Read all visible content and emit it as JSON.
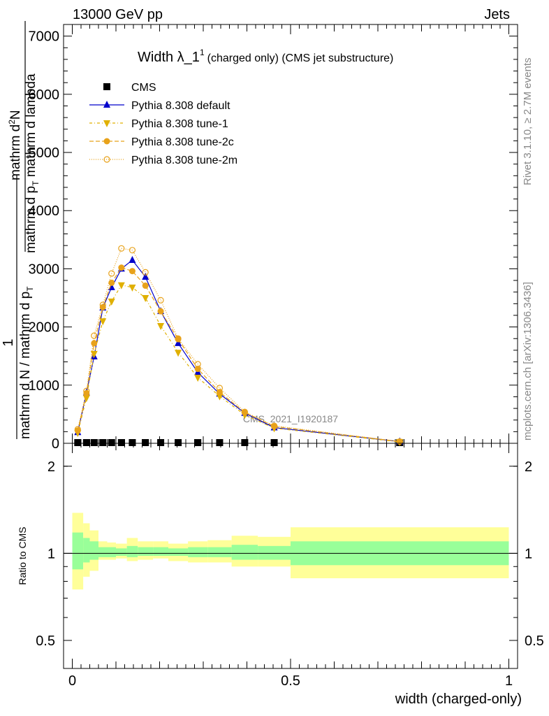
{
  "header": {
    "left": "13000 GeV pp",
    "right": "Jets"
  },
  "side_labels": {
    "rivet": "Rivet 3.1.10, ≥ 2.7M events",
    "mcplots": "mcplots.cern.ch [arXiv:1306.3436]"
  },
  "watermark": "CMS_2021_I1920187",
  "chart_data": {
    "type": "line",
    "title": "Width λ_1",
    "title_sup": "1",
    "subtitle": "(charged only) (CMS jet substructure)",
    "ylabel_upper": "1 / mathrm d N / mathrm d p_T mathrm d N / mathrm d lambda",
    "ylabel_parts": {
      "frac_num": "1",
      "frac_den": "mathrm d N / mathrm d p",
      "frac_den_sub": "T",
      "right_num": "mathrm d",
      "right_num_sup": "2",
      "right_num_tail": "N",
      "right_den": "mathrm d p",
      "right_den_sub": "T",
      "right_den_tail": " mathrm d lambda"
    },
    "xlabel": "width (charged-only)",
    "xlim": [
      -0.02,
      1.02
    ],
    "ylim": [
      0,
      7200
    ],
    "ytick_labels": [
      "0",
      "1000",
      "2000",
      "3000",
      "4000",
      "5000",
      "6000",
      "7000"
    ],
    "ratio_ylabel": "Ratio to CMS",
    "ratio_ytick_labels": [
      "0.5",
      "1",
      "2"
    ],
    "xtick_labels": [
      "0",
      "0.5",
      "1"
    ],
    "ratio_ylim": [
      0.4,
      2.4
    ],
    "x": [
      0.0125,
      0.0325,
      0.05,
      0.07,
      0.09,
      0.1125,
      0.1375,
      0.1675,
      0.2025,
      0.2425,
      0.2875,
      0.3375,
      0.395,
      0.4625,
      0.75
    ],
    "series": [
      {
        "name": "CMS",
        "marker": "square",
        "color": "#000000",
        "values": [
          0,
          0,
          0,
          0,
          0,
          0,
          0,
          0,
          0,
          0,
          0,
          0,
          0,
          0,
          0
        ]
      },
      {
        "name": "Pythia 8.308 default",
        "marker": "triangle-up",
        "color": "#0000cc",
        "dash": "",
        "values": [
          190,
          870,
          1490,
          2330,
          2680,
          3000,
          3150,
          2860,
          2270,
          1720,
          1220,
          850,
          520,
          270,
          30
        ]
      },
      {
        "name": "Pythia 8.308 tune-1",
        "marker": "triangle-down",
        "color": "#e0b000",
        "dash": "4,3,1,3",
        "values": [
          180,
          780,
          1540,
          2100,
          2440,
          2720,
          2680,
          2500,
          2020,
          1560,
          1130,
          810,
          490,
          260,
          25
        ]
      },
      {
        "name": "Pythia 8.308 tune-2c",
        "marker": "circle-filled",
        "color": "#e8a21a",
        "dash": "6,3",
        "values": [
          220,
          860,
          1720,
          2340,
          2760,
          3020,
          2960,
          2710,
          2270,
          1790,
          1280,
          880,
          530,
          290,
          30
        ]
      },
      {
        "name": "Pythia 8.308 tune-2m",
        "marker": "circle-open",
        "color": "#e8a21a",
        "dash": "1,2",
        "values": [
          240,
          900,
          1850,
          2380,
          2920,
          3350,
          3320,
          2940,
          2460,
          1800,
          1360,
          950,
          540,
          300,
          30
        ]
      }
    ],
    "ratio_bands": [
      {
        "x0": 0.0,
        "x1": 0.025,
        "in": [
          0.88,
          1.18
        ],
        "out": [
          0.75,
          1.38
        ]
      },
      {
        "x0": 0.025,
        "x1": 0.04,
        "in": [
          0.93,
          1.13
        ],
        "out": [
          0.83,
          1.27
        ]
      },
      {
        "x0": 0.04,
        "x1": 0.06,
        "in": [
          0.95,
          1.1
        ],
        "out": [
          0.87,
          1.2
        ]
      },
      {
        "x0": 0.06,
        "x1": 0.08,
        "in": [
          0.97,
          1.05
        ],
        "out": [
          0.95,
          1.1
        ]
      },
      {
        "x0": 0.08,
        "x1": 0.1,
        "in": [
          0.97,
          1.05
        ],
        "out": [
          0.95,
          1.09
        ]
      },
      {
        "x0": 0.1,
        "x1": 0.125,
        "in": [
          0.98,
          1.04
        ],
        "out": [
          0.96,
          1.08
        ]
      },
      {
        "x0": 0.125,
        "x1": 0.15,
        "in": [
          0.97,
          1.06
        ],
        "out": [
          0.94,
          1.13
        ]
      },
      {
        "x0": 0.15,
        "x1": 0.185,
        "in": [
          0.98,
          1.05
        ],
        "out": [
          0.95,
          1.1
        ]
      },
      {
        "x0": 0.185,
        "x1": 0.22,
        "in": [
          0.98,
          1.05
        ],
        "out": [
          0.96,
          1.1
        ]
      },
      {
        "x0": 0.22,
        "x1": 0.265,
        "in": [
          0.98,
          1.04
        ],
        "out": [
          0.94,
          1.08
        ]
      },
      {
        "x0": 0.265,
        "x1": 0.31,
        "in": [
          0.97,
          1.05
        ],
        "out": [
          0.93,
          1.1
        ]
      },
      {
        "x0": 0.31,
        "x1": 0.365,
        "in": [
          0.97,
          1.05
        ],
        "out": [
          0.93,
          1.11
        ]
      },
      {
        "x0": 0.365,
        "x1": 0.425,
        "in": [
          0.95,
          1.07
        ],
        "out": [
          0.9,
          1.15
        ]
      },
      {
        "x0": 0.425,
        "x1": 0.5,
        "in": [
          0.95,
          1.06
        ],
        "out": [
          0.9,
          1.14
        ]
      },
      {
        "x0": 0.5,
        "x1": 1.0,
        "in": [
          0.91,
          1.1
        ],
        "out": [
          0.82,
          1.23
        ]
      }
    ],
    "band_colors": {
      "inner": "#99ff99",
      "outer": "#ffff99"
    }
  }
}
